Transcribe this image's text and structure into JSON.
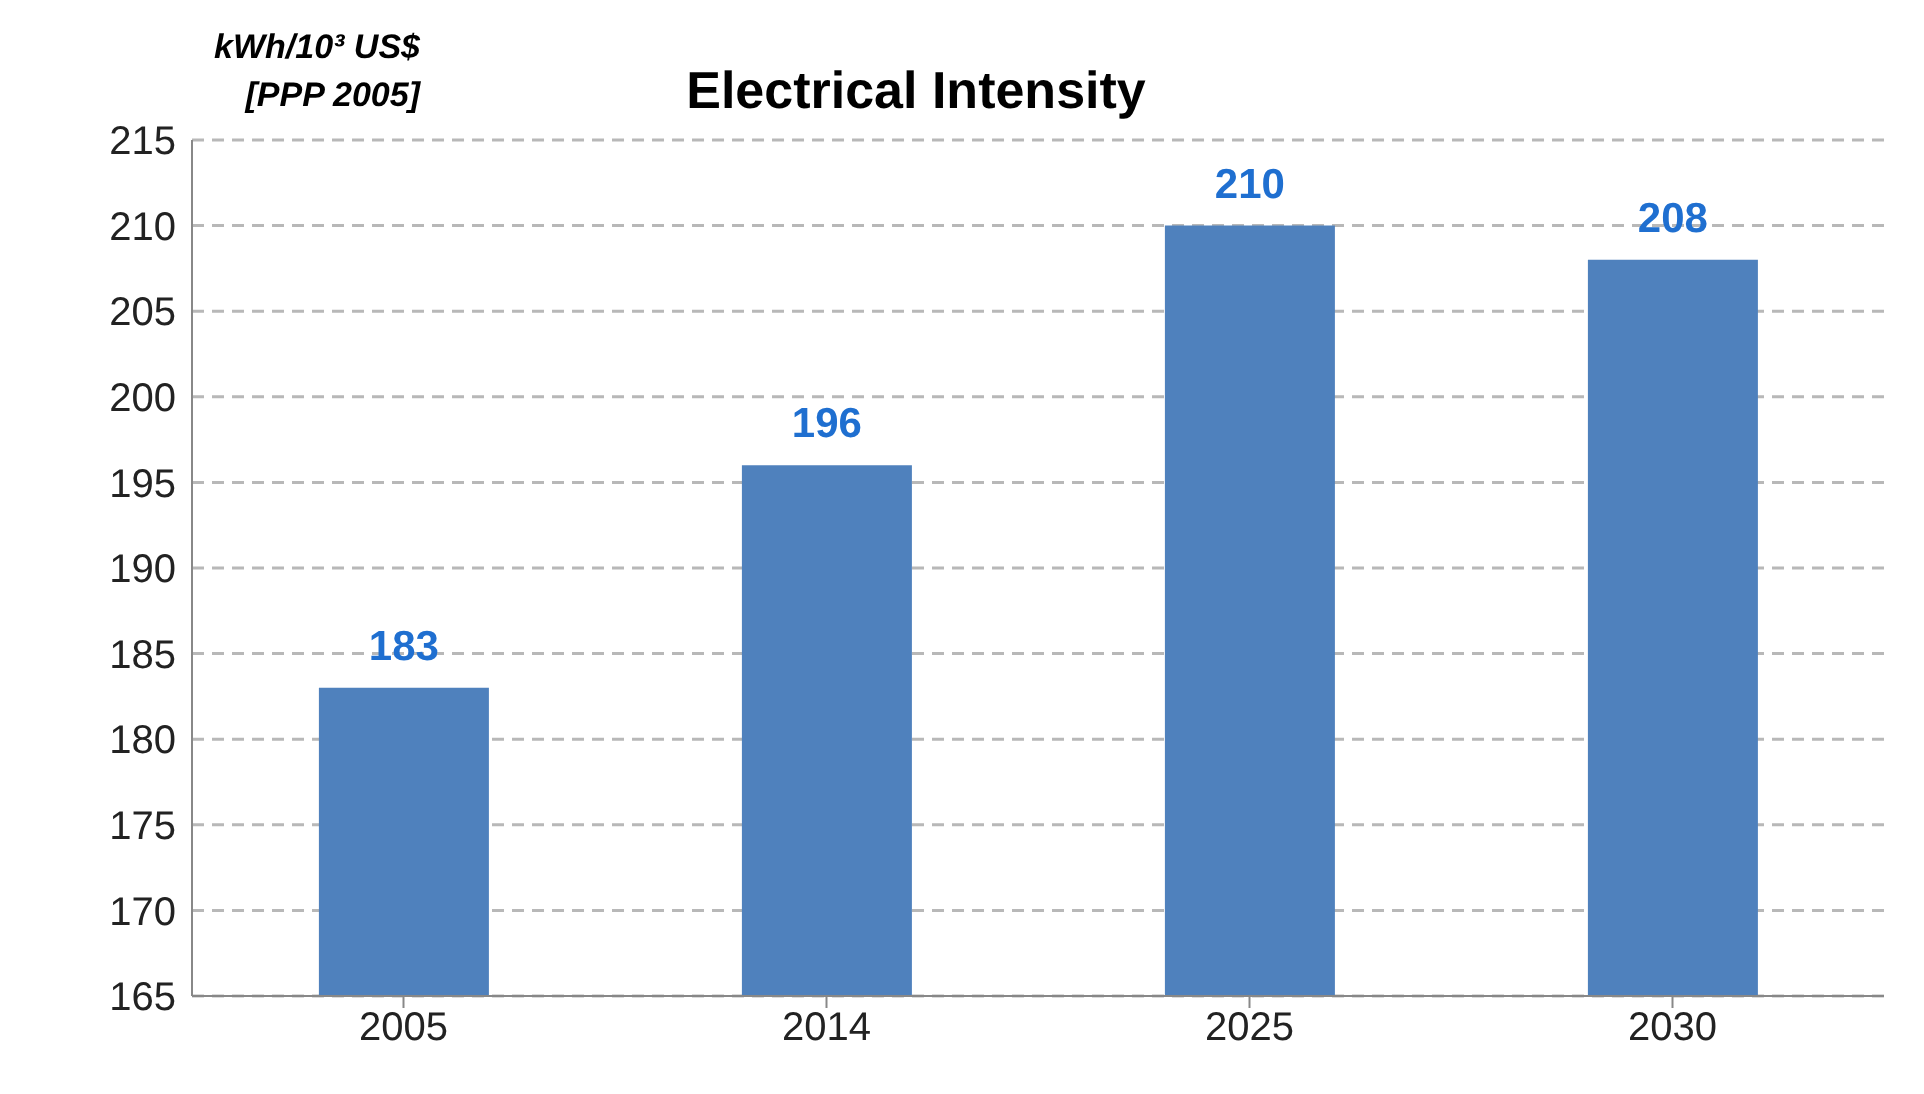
{
  "chart_data": {
    "type": "bar",
    "title": "Electrical Intensity",
    "ylabel": "kWh/10³ US$ [PPP 2005]",
    "categories": [
      "2005",
      "2014",
      "2025",
      "2030"
    ],
    "values": [
      183,
      196,
      210,
      208
    ],
    "color": "#4f81bd",
    "ylim": [
      165,
      215
    ],
    "yticks": [
      165,
      170,
      175,
      180,
      185,
      190,
      195,
      200,
      205,
      210,
      215
    ],
    "grid": "y",
    "data_labels": true
  }
}
